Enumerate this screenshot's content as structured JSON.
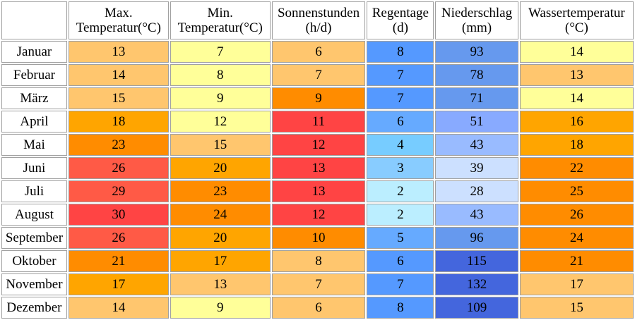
{
  "chart_data": {
    "type": "table",
    "columns": [
      {
        "key": "month",
        "label_lines": [
          "",
          ""
        ]
      },
      {
        "key": "max_temp",
        "label_lines": [
          "Max.",
          "Temperatur(°C)"
        ]
      },
      {
        "key": "min_temp",
        "label_lines": [
          "Min.",
          "Temperatur(°C)"
        ]
      },
      {
        "key": "sunshine",
        "label_lines": [
          "Sonnenstunden",
          "(h/d)"
        ]
      },
      {
        "key": "rain_days",
        "label_lines": [
          "Regentage",
          "(d)"
        ]
      },
      {
        "key": "precipitation",
        "label_lines": [
          "Niederschlag",
          "(mm)"
        ]
      },
      {
        "key": "water_temp",
        "label_lines": [
          "Wassertemperatur",
          "(°C)"
        ]
      }
    ],
    "rows": [
      {
        "month": "Januar",
        "max_temp": 13,
        "min_temp": 7,
        "sunshine": 6,
        "rain_days": 8,
        "precipitation": 93,
        "water_temp": 14
      },
      {
        "month": "Februar",
        "max_temp": 14,
        "min_temp": 8,
        "sunshine": 7,
        "rain_days": 7,
        "precipitation": 78,
        "water_temp": 13
      },
      {
        "month": "März",
        "max_temp": 15,
        "min_temp": 9,
        "sunshine": 9,
        "rain_days": 7,
        "precipitation": 71,
        "water_temp": 14
      },
      {
        "month": "April",
        "max_temp": 18,
        "min_temp": 12,
        "sunshine": 11,
        "rain_days": 6,
        "precipitation": 51,
        "water_temp": 16
      },
      {
        "month": "Mai",
        "max_temp": 23,
        "min_temp": 15,
        "sunshine": 12,
        "rain_days": 4,
        "precipitation": 43,
        "water_temp": 18
      },
      {
        "month": "Juni",
        "max_temp": 26,
        "min_temp": 20,
        "sunshine": 13,
        "rain_days": 3,
        "precipitation": 39,
        "water_temp": 22
      },
      {
        "month": "Juli",
        "max_temp": 29,
        "min_temp": 23,
        "sunshine": 13,
        "rain_days": 2,
        "precipitation": 28,
        "water_temp": 25
      },
      {
        "month": "August",
        "max_temp": 30,
        "min_temp": 24,
        "sunshine": 12,
        "rain_days": 2,
        "precipitation": 43,
        "water_temp": 26
      },
      {
        "month": "September",
        "max_temp": 26,
        "min_temp": 20,
        "sunshine": 10,
        "rain_days": 5,
        "precipitation": 96,
        "water_temp": 24
      },
      {
        "month": "Oktober",
        "max_temp": 21,
        "min_temp": 17,
        "sunshine": 8,
        "rain_days": 6,
        "precipitation": 115,
        "water_temp": 21
      },
      {
        "month": "November",
        "max_temp": 17,
        "min_temp": 13,
        "sunshine": 7,
        "rain_days": 7,
        "precipitation": 132,
        "water_temp": 17
      },
      {
        "month": "Dezember",
        "max_temp": 14,
        "min_temp": 9,
        "sunshine": 6,
        "rain_days": 8,
        "precipitation": 109,
        "water_temp": 15
      }
    ],
    "cell_colors": [
      [
        "#ffc66e",
        "#ffff99",
        "#ffc66e",
        "#5599ff",
        "#6699ee",
        "#ffff99"
      ],
      [
        "#ffc66e",
        "#ffff99",
        "#ffc66e",
        "#5599ff",
        "#6699ee",
        "#ffc66e"
      ],
      [
        "#ffc66e",
        "#ffff99",
        "#ff8c00",
        "#5599ff",
        "#6699ee",
        "#ffff99"
      ],
      [
        "#ffa500",
        "#ffff99",
        "#ff4444",
        "#66aaff",
        "#88aaff",
        "#ffa500"
      ],
      [
        "#ff8c00",
        "#ffc66e",
        "#ff4444",
        "#77ccff",
        "#99bbff",
        "#ffa500"
      ],
      [
        "#ff5a46",
        "#ffa500",
        "#ff4444",
        "#88ccff",
        "#cce0ff",
        "#ff8c00"
      ],
      [
        "#ff5a46",
        "#ff8c00",
        "#ff4444",
        "#bbeeff",
        "#cce0ff",
        "#ff8c00"
      ],
      [
        "#ff4444",
        "#ff8c00",
        "#ff4444",
        "#bbeeff",
        "#99bbff",
        "#ff8c00"
      ],
      [
        "#ff5a46",
        "#ffa500",
        "#ff8c00",
        "#66aaff",
        "#6699ee",
        "#ff8c00"
      ],
      [
        "#ff8c00",
        "#ffa500",
        "#ffc66e",
        "#5599ff",
        "#4466dd",
        "#ff8c00"
      ],
      [
        "#ffa500",
        "#ffc66e",
        "#ffc66e",
        "#5599ff",
        "#4466dd",
        "#ffc66e"
      ],
      [
        "#ffc66e",
        "#ffff99",
        "#ffc66e",
        "#5599ff",
        "#4466dd",
        "#ffc66e"
      ]
    ]
  }
}
